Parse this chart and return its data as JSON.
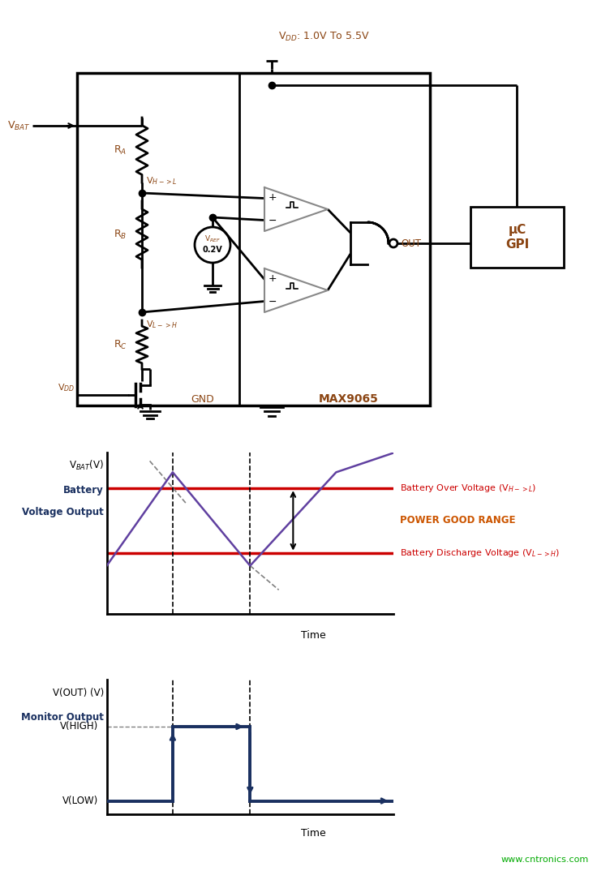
{
  "bg_color": "#ffffff",
  "vdd_text": "V$_{DD}$: 1.0V To 5.5V",
  "vbat_text": "V$_{BAT}$",
  "ra_text": "R$_{A}$",
  "rb_text": "R$_{B}$",
  "rc_text": "R$_{C}$",
  "vdd_label": "V$_{DD}$",
  "vhl_text": "V$_{H->L}$",
  "vlh_text": "V$_{L->H}$",
  "vref_text": "V$_{REF}$",
  "vref_val": "0.2V",
  "gnd_text": "GND",
  "max_text": "MAX9065",
  "out_text": "OUT",
  "uc_text": "μC\nGPI",
  "line_color": "#000000",
  "label_color": "#8B4513",
  "dark_blue": "#1a3060",
  "red_line": "#cc0000",
  "purple_wave": "#6040a0",
  "graph1_y_label1": "V$_{BAT}$(V)",
  "graph1_y_label2": "Battery",
  "graph1_y_label3": "Voltage Output",
  "graph1_xlabel": "Time",
  "graph1_high_label": "Battery Over Voltage (V$_{H->L}$)",
  "graph1_mid_label": "POWER GOOD RANGE",
  "graph1_low_label": "Battery Discharge Voltage (V$_{L->H}$)",
  "graph2_y_label1": "V(OUT) (V)",
  "graph2_y_label2": "Monitor Output",
  "graph2_vhigh": "V(HIGH)",
  "graph2_vlow": "V(LOW)",
  "graph2_xlabel": "Time",
  "watermark": "www.cntronics.com"
}
